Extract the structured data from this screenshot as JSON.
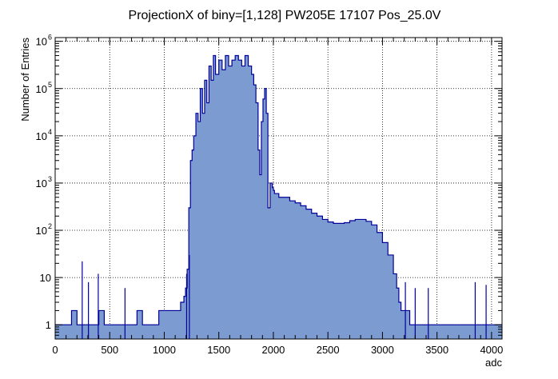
{
  "chart_data": {
    "type": "area",
    "title": "ProjectionX of biny=[1,128] PW205E 17107 Pos_25.0V",
    "xlabel": "adc",
    "ylabel": "Number of Entries",
    "xlim": [
      0,
      4096
    ],
    "ylim": [
      0.5,
      1200000
    ],
    "y_scale": "log",
    "grid": true,
    "x_ticks": [
      {
        "value": 0,
        "label": "0"
      },
      {
        "value": 500,
        "label": "500"
      },
      {
        "value": 1000,
        "label": "1000"
      },
      {
        "value": 1500,
        "label": "1500"
      },
      {
        "value": 2000,
        "label": "2000"
      },
      {
        "value": 2500,
        "label": "2500"
      },
      {
        "value": 3000,
        "label": "3000"
      },
      {
        "value": 3500,
        "label": "3500"
      },
      {
        "value": 4000,
        "label": "4000"
      }
    ],
    "y_ticks": [
      {
        "value": 1,
        "base": "1",
        "exp": ""
      },
      {
        "value": 10,
        "base": "10",
        "exp": ""
      },
      {
        "value": 100,
        "base": "10",
        "exp": "2"
      },
      {
        "value": 1000,
        "base": "10",
        "exp": "3"
      },
      {
        "value": 10000,
        "base": "10",
        "exp": "4"
      },
      {
        "value": 100000,
        "base": "10",
        "exp": "5"
      },
      {
        "value": 1000000,
        "base": "10",
        "exp": "6"
      }
    ],
    "colors": {
      "fill": "#7b9bd1",
      "line": "#000099"
    },
    "series": [
      {
        "x": [
          0,
          50,
          100,
          150,
          200,
          250,
          300,
          350,
          400,
          450,
          500,
          550,
          600,
          650,
          700,
          750,
          800,
          850,
          900,
          950,
          1000,
          1050,
          1100,
          1150,
          1180,
          1195,
          1210,
          1225,
          1240,
          1255,
          1270,
          1290,
          1310,
          1330,
          1350,
          1370,
          1390,
          1410,
          1430,
          1450,
          1470,
          1500,
          1530,
          1560,
          1590,
          1620,
          1650,
          1680,
          1710,
          1740,
          1770,
          1800,
          1820,
          1840,
          1860,
          1875,
          1890,
          1905,
          1920,
          1935,
          1950,
          1970,
          1990,
          2000,
          2010,
          2050,
          2100,
          2150,
          2200,
          2250,
          2300,
          2350,
          2400,
          2450,
          2500,
          2550,
          2600,
          2650,
          2700,
          2750,
          2800,
          2850,
          2900,
          2950,
          3000,
          3050,
          3100,
          3130,
          3150,
          3170,
          3200,
          3250,
          3300,
          3350,
          3400,
          3450,
          3500,
          3550,
          3600,
          3650,
          3700,
          3750,
          3800,
          3850,
          3900,
          3950,
          4000,
          4050,
          4096
        ],
        "y": [
          1,
          1,
          1,
          2,
          1,
          1,
          1,
          1,
          2,
          1,
          1,
          1,
          1,
          1,
          1,
          2,
          1,
          1,
          1,
          2,
          2,
          2,
          2,
          3,
          4,
          6,
          15,
          300,
          3000,
          5000,
          10000,
          30000,
          20000,
          100000,
          30000,
          150000,
          50000,
          300000,
          150000,
          500000,
          200000,
          400000,
          250000,
          500000,
          300000,
          400000,
          500000,
          400000,
          300000,
          500000,
          300000,
          200000,
          120000,
          50000,
          5000,
          1500,
          20000,
          60000,
          100000,
          30000,
          300,
          1000,
          800,
          700,
          600,
          500,
          500,
          420,
          380,
          330,
          280,
          230,
          200,
          170,
          150,
          140,
          140,
          145,
          160,
          170,
          170,
          155,
          130,
          90,
          55,
          30,
          12,
          6,
          3,
          2,
          2,
          1,
          1,
          1,
          1,
          1,
          1,
          1,
          1,
          1,
          1,
          1,
          1,
          1,
          1,
          1,
          1,
          1,
          1
        ]
      }
    ],
    "spikes": [
      {
        "x": 248,
        "y": 22
      },
      {
        "x": 305,
        "y": 8
      },
      {
        "x": 395,
        "y": 12
      },
      {
        "x": 640,
        "y": 6
      },
      {
        "x": 1205,
        "y": 12
      },
      {
        "x": 1230,
        "y": 30
      },
      {
        "x": 3210,
        "y": 8
      },
      {
        "x": 3300,
        "y": 6
      },
      {
        "x": 3420,
        "y": 6
      },
      {
        "x": 3850,
        "y": 8
      },
      {
        "x": 3950,
        "y": 7
      }
    ]
  }
}
